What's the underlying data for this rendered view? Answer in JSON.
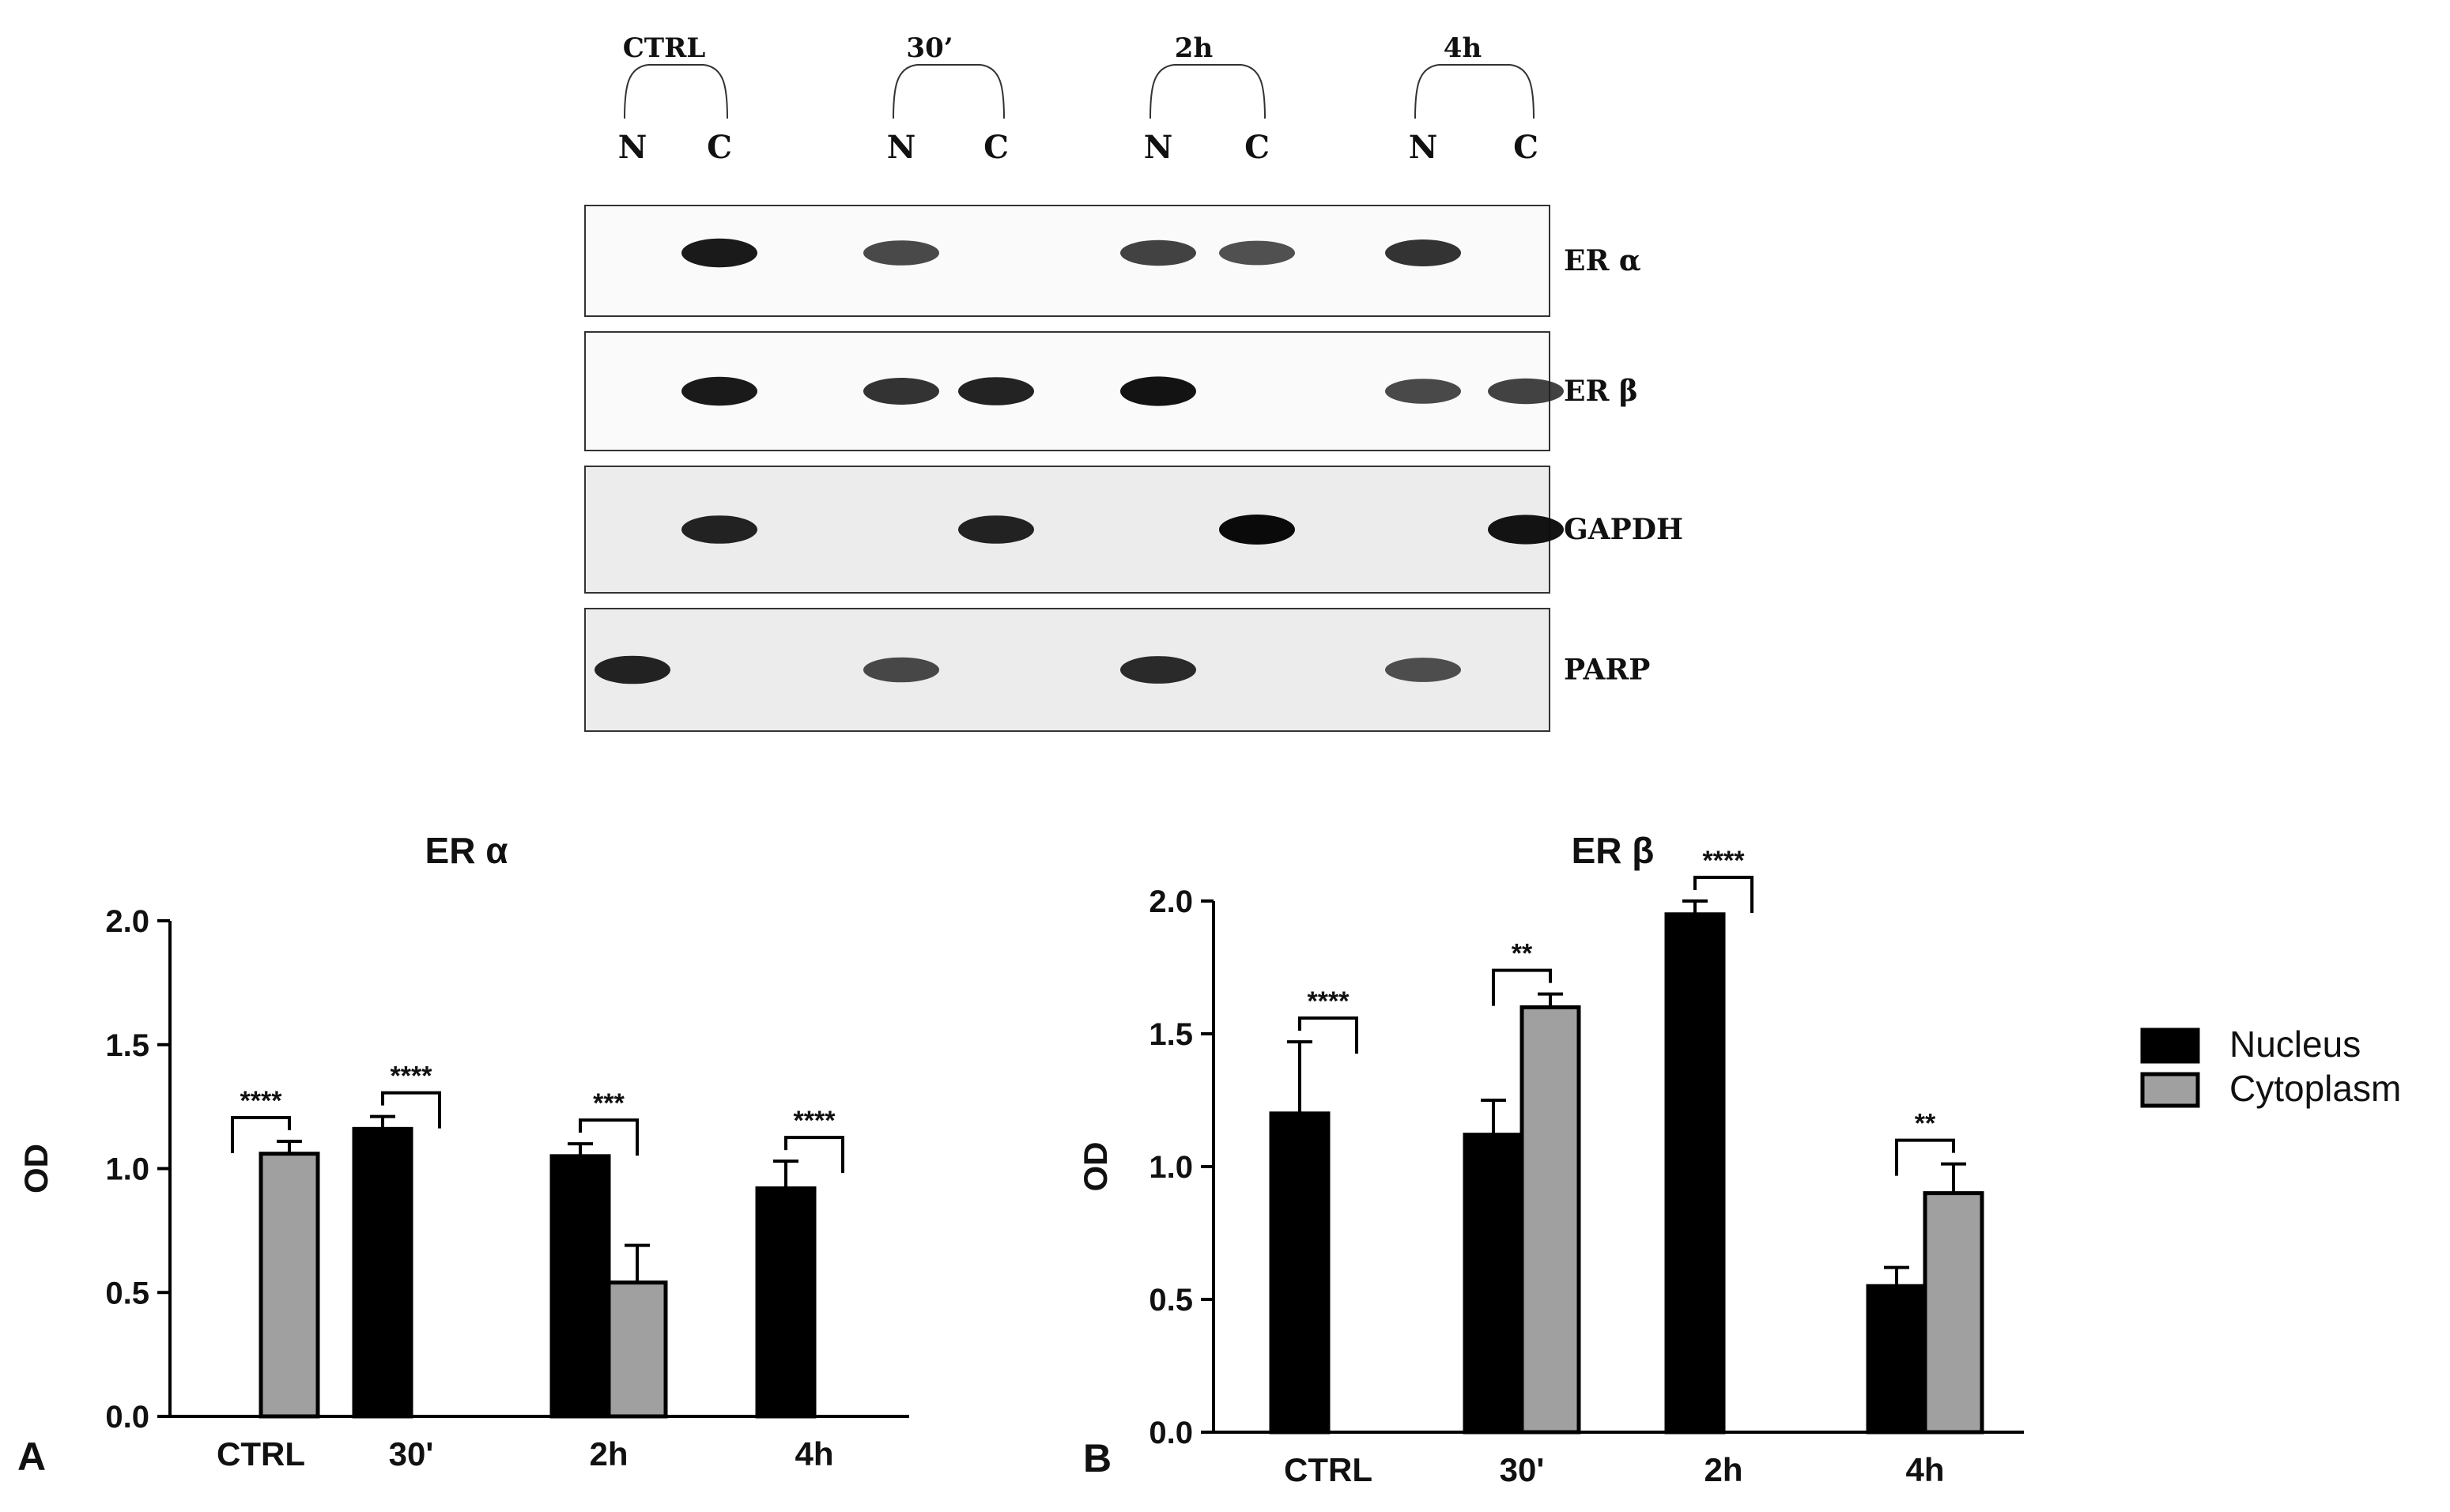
{
  "blot": {
    "groups": [
      {
        "label": "CTRL",
        "lanes": [
          "N",
          "C"
        ]
      },
      {
        "label": "30’",
        "lanes": [
          "N",
          "C"
        ]
      },
      {
        "label": "2h",
        "lanes": [
          "N",
          "C"
        ]
      },
      {
        "label": "4h",
        "lanes": [
          "N",
          "C"
        ]
      }
    ],
    "rows": [
      {
        "label": "ER α",
        "bands": [
          0,
          0.9,
          0.6,
          0,
          0.65,
          0.55,
          0.75,
          0
        ]
      },
      {
        "label": "ER β",
        "bands": [
          0,
          0.9,
          0.75,
          0.85,
          0.95,
          0,
          0.6,
          0.65
        ]
      },
      {
        "label": "GAPDH",
        "bands": [
          0,
          0.85,
          0,
          0.85,
          0,
          1.0,
          0,
          0.95
        ]
      },
      {
        "label": "PARP",
        "bands": [
          0.85,
          0,
          0.6,
          0,
          0.8,
          0,
          0.55,
          0
        ]
      }
    ]
  },
  "legend": {
    "items": [
      {
        "label": "Nucleus",
        "color": "#000000"
      },
      {
        "label": "Cytoplasm",
        "color": "#a0a0a0"
      }
    ]
  },
  "chart_data": [
    {
      "panel_label": "A",
      "type": "bar",
      "title": "ER α",
      "xlabel": "",
      "ylabel": "OD",
      "ylim": [
        0,
        2.0
      ],
      "yticks": [
        "0.0",
        "0.5",
        "1.0",
        "1.5",
        "2.0"
      ],
      "categories": [
        "CTRL",
        "30'",
        "2h",
        "4h"
      ],
      "series": [
        {
          "name": "Nucleus",
          "color": "#000000",
          "values": [
            0,
            1.16,
            1.05,
            0.92
          ],
          "errors": [
            0,
            0.05,
            0.05,
            0.11
          ]
        },
        {
          "name": "Cytoplasm",
          "color": "#a0a0a0",
          "values": [
            1.06,
            0,
            0.54,
            0
          ],
          "errors": [
            0.05,
            0,
            0.15,
            0
          ]
        }
      ],
      "significance": [
        "****",
        "****",
        "***",
        "****"
      ]
    },
    {
      "panel_label": "B",
      "type": "bar",
      "title": "ER β",
      "xlabel": "",
      "ylabel": "OD",
      "ylim": [
        0,
        2.0
      ],
      "yticks": [
        "0.0",
        "0.5",
        "1.0",
        "1.5",
        "2.0"
      ],
      "categories": [
        "CTRL",
        "30'",
        "2h",
        "4h"
      ],
      "series": [
        {
          "name": "Nucleus",
          "color": "#000000",
          "values": [
            1.2,
            1.12,
            1.95,
            0.55
          ],
          "errors": [
            0.27,
            0.13,
            0.05,
            0.07
          ]
        },
        {
          "name": "Cytoplasm",
          "color": "#a0a0a0",
          "values": [
            0,
            1.6,
            0,
            0.9
          ],
          "errors": [
            0,
            0.05,
            0,
            0.11
          ]
        }
      ],
      "significance": [
        "****",
        "**",
        "****",
        "**"
      ]
    }
  ]
}
